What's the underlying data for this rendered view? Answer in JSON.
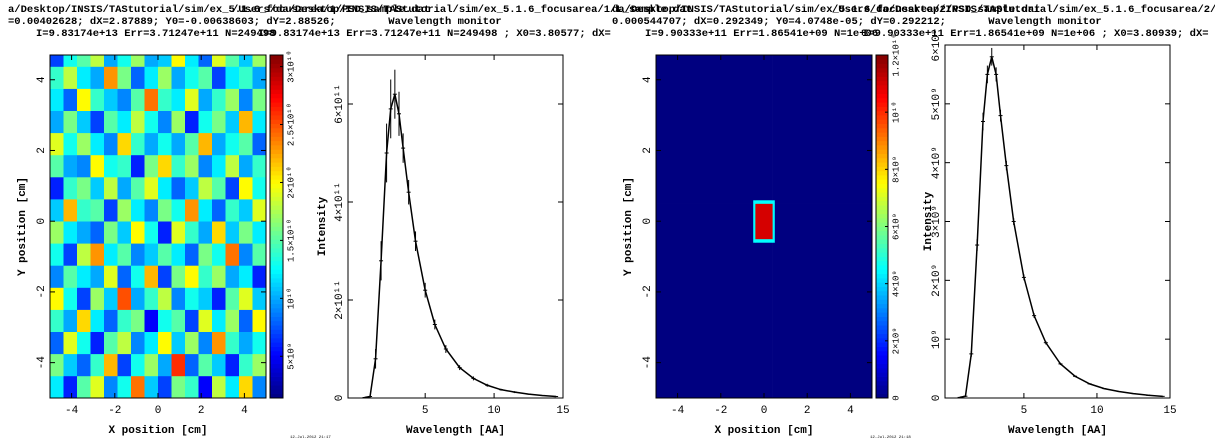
{
  "chart_data": [
    {
      "type": "heatmap",
      "title": [
        "a/Desktop/INSIS/TAStutorial/sim/ex_5.1.6_focusarea/1/PSD_sample.dat",
        "=0.00402628; dX=2.87889; Y0=-0.00638603; dY=2.88526;",
        "I=9.83174e+13 Err=3.71247e+11 N=249498"
      ],
      "xlabel": "X position [cm]",
      "ylabel": "Y position [cm]",
      "date": "12-Jul-2012 21:17",
      "xlim": [
        -5,
        5
      ],
      "ylim": [
        -5,
        4.7
      ],
      "xticks": [
        -4,
        -2,
        0,
        2,
        4
      ],
      "yticks": [
        -4,
        -2,
        0,
        2,
        4
      ],
      "colormap": "jet",
      "clim": [
        1400000000,
        31000000000
      ],
      "cticks": [
        {
          "value": 5000000000,
          "label": "5×10⁹"
        },
        {
          "value": 10000000000,
          "label": "10¹⁰"
        },
        {
          "value": 15000000000,
          "label": "1.5×10¹⁰"
        },
        {
          "value": 20000000000,
          "label": "2×10¹⁰"
        },
        {
          "value": 25000000000,
          "label": "2.5×10¹⁰"
        },
        {
          "value": 30000000000,
          "label": "3×10¹⁰"
        }
      ],
      "xbins": [
        -5,
        -4.375,
        -3.75,
        -3.125,
        -2.5,
        -1.875,
        -1.25,
        -0.625,
        0,
        0.625,
        1.25,
        1.875,
        2.5,
        3.125,
        3.75,
        4.375,
        5
      ],
      "ybins": [
        -5,
        -4.375,
        -3.75,
        -3.125,
        -2.5,
        -1.875,
        -1.25,
        -0.625,
        0,
        0.625,
        1.25,
        1.875,
        2.5,
        3.125,
        3.75,
        4.375,
        5
      ],
      "z": [
        [
          12000000000.0,
          6000000000.0,
          15000000000.0,
          19000000000.0,
          9000000000.0,
          13000000000.0,
          24000000000.0,
          11000000000.0,
          7000000000.0,
          16000000000.0,
          14000000000.0,
          5000000000.0,
          18000000000.0,
          12000000000.0,
          21000000000.0,
          9000000000.0
        ],
        [
          16000000000.0,
          11000000000.0,
          8000000000.0,
          14000000000.0,
          22000000000.0,
          7000000000.0,
          13000000000.0,
          17000000000.0,
          10000000000.0,
          26000000000.0,
          8000000000.0,
          15000000000.0,
          11000000000.0,
          6000000000.0,
          14000000000.0,
          17000000000.0
        ],
        [
          8000000000.0,
          19000000000.0,
          13000000000.0,
          6000000000.0,
          15000000000.0,
          18000000000.0,
          9000000000.0,
          12000000000.0,
          20000000000.0,
          11000000000.0,
          17000000000.0,
          9000000000.0,
          23000000000.0,
          14000000000.0,
          10000000000.0,
          13000000000.0
        ],
        [
          14000000000.0,
          10000000000.0,
          21000000000.0,
          12000000000.0,
          8000000000.0,
          14000000000.0,
          16000000000.0,
          5000000000.0,
          13000000000.0,
          15000000000.0,
          7000000000.0,
          19000000000.0,
          12000000000.0,
          17000000000.0,
          8000000000.0,
          20000000000.0
        ],
        [
          20000000000.0,
          13000000000.0,
          7000000000.0,
          17000000000.0,
          11000000000.0,
          25000000000.0,
          10000000000.0,
          14000000000.0,
          18000000000.0,
          9000000000.0,
          13000000000.0,
          11000000000.0,
          6000000000.0,
          15000000000.0,
          19000000000.0,
          11000000000.0
        ],
        [
          9000000000.0,
          15000000000.0,
          12000000000.0,
          10000000000.0,
          19000000000.0,
          8000000000.0,
          13000000000.0,
          22000000000.0,
          7000000000.0,
          16000000000.0,
          20000000000.0,
          14000000000.0,
          17000000000.0,
          10000000000.0,
          12000000000.0,
          6000000000.0
        ],
        [
          13000000000.0,
          7000000000.0,
          18000000000.0,
          23000000000.0,
          12000000000.0,
          15000000000.0,
          9000000000.0,
          11000000000.0,
          15000000000.0,
          12000000000.0,
          8000000000.0,
          16000000000.0,
          13000000000.0,
          24000000000.0,
          9000000000.0,
          15000000000.0
        ],
        [
          17000000000.0,
          12000000000.0,
          10000000000.0,
          8000000000.0,
          16000000000.0,
          11000000000.0,
          20000000000.0,
          13000000000.0,
          6000000000.0,
          19000000000.0,
          14000000000.0,
          10000000000.0,
          21000000000.0,
          11000000000.0,
          16000000000.0,
          12000000000.0
        ],
        [
          11000000000.0,
          22000000000.0,
          14000000000.0,
          15000000000.0,
          7000000000.0,
          17000000000.0,
          12000000000.0,
          9000000000.0,
          16000000000.0,
          13000000000.0,
          23000000000.0,
          12000000000.0,
          8000000000.0,
          14000000000.0,
          11000000000.0,
          19000000000.0
        ],
        [
          6000000000.0,
          14000000000.0,
          16000000000.0,
          11000000000.0,
          18000000000.0,
          10000000000.0,
          15000000000.0,
          19000000000.0,
          12000000000.0,
          8000000000.0,
          11000000000.0,
          18000000000.0,
          15000000000.0,
          7000000000.0,
          20000000000.0,
          13000000000.0
        ],
        [
          15000000000.0,
          10000000000.0,
          9000000000.0,
          20000000000.0,
          13000000000.0,
          14000000000.0,
          6000000000.0,
          16000000000.0,
          21000000000.0,
          14000000000.0,
          17000000000.0,
          9000000000.0,
          12000000000.0,
          18000000000.0,
          10000000000.0,
          14000000000.0
        ],
        [
          19000000000.0,
          13000000000.0,
          17000000000.0,
          12000000000.0,
          9000000000.0,
          21000000000.0,
          14000000000.0,
          10000000000.0,
          13000000000.0,
          10000000000.0,
          15000000000.0,
          22000000000.0,
          10000000000.0,
          13000000000.0,
          15000000000.0,
          8000000000.0
        ],
        [
          10000000000.0,
          16000000000.0,
          11000000000.0,
          7000000000.0,
          15000000000.0,
          12000000000.0,
          18000000000.0,
          13000000000.0,
          9000000000.0,
          17000000000.0,
          6000000000.0,
          13000000000.0,
          16000000000.0,
          11000000000.0,
          22000000000.0,
          12000000000.0
        ],
        [
          12000000000.0,
          8000000000.0,
          20000000000.0,
          14000000000.0,
          11000000000.0,
          9000000000.0,
          15000000000.0,
          24000000000.0,
          14000000000.0,
          12000000000.0,
          19000000000.0,
          10000000000.0,
          14000000000.0,
          17000000000.0,
          9000000000.0,
          16000000000.0
        ],
        [
          14000000000.0,
          18000000000.0,
          12000000000.0,
          10000000000.0,
          23000000000.0,
          16000000000.0,
          8000000000.0,
          12000000000.0,
          17000000000.0,
          10000000000.0,
          13000000000.0,
          15000000000.0,
          7000000000.0,
          12000000000.0,
          14000000000.0,
          10000000000.0
        ],
        [
          7000000000.0,
          13000000000.0,
          15000000000.0,
          18000000000.0,
          10000000000.0,
          13000000000.0,
          17000000000.0,
          10000000000.0,
          11000000000.0,
          20000000000.0,
          12000000000.0,
          8000000000.0,
          19000000000.0,
          15000000000.0,
          11000000000.0,
          17000000000.0
        ]
      ]
    },
    {
      "type": "line",
      "title": [
        "/Users/da/Desktop/INSIS/TAStutorial/sim/ex_5.1.6_focusarea/1/L_sample.dat",
        "Wavelength monitor",
        "I=9.83174e+13 Err=3.71247e+11 N=249498 ; X0=3.80577; dX="
      ],
      "xlabel": "Wavelength [AA]",
      "ylabel": "Intensity",
      "color": "#000000",
      "xlim": [
        -0.6,
        15
      ],
      "ylim": [
        0,
        700000000000
      ],
      "xticks": [
        5,
        10,
        15
      ],
      "yticks": [
        {
          "value": 0,
          "label": "0"
        },
        {
          "value": 200000000000,
          "label": "2×10¹¹"
        },
        {
          "value": 400000000000,
          "label": "4×10¹¹"
        },
        {
          "value": 600000000000,
          "label": "6×10¹¹"
        }
      ],
      "x": [
        0.6,
        1.0,
        1.4,
        1.8,
        2.2,
        2.5,
        2.8,
        3.1,
        3.4,
        3.8,
        4.3,
        5,
        5.7,
        6.5,
        7.5,
        8.5,
        9.5,
        10.5,
        11.5,
        12.5,
        13.5,
        14.5
      ],
      "values": [
        1000000000.0,
        3000000000.0,
        80000000000.0,
        280000000000.0,
        500000000000.0,
        590000000000.0,
        620000000000.0,
        580000000000.0,
        510000000000.0,
        420000000000.0,
        320000000000.0,
        220000000000.0,
        150000000000.0,
        100000000000.0,
        62000000000.0,
        40000000000.0,
        26000000000.0,
        17000000000.0,
        12000000000.0,
        8000000000.0,
        5000000000.0,
        3000000000.0
      ],
      "errors": [
        1000000000.0,
        2000000000.0,
        20000000000.0,
        40000000000.0,
        60000000000.0,
        60000000000.0,
        50000000000.0,
        45000000000.0,
        30000000000.0,
        25000000000.0,
        20000000000.0,
        15000000000.0,
        10000000000.0,
        8000000000.0,
        5000000000.0,
        4000000000.0,
        3000000000.0,
        2000000000.0,
        2000000000.0,
        1000000000.0,
        1000000000.0,
        1000000000.0
      ]
    },
    {
      "type": "heatmap",
      "title": [
        "da/Desktop/INSIS/TAStutorial/sim/ex_5.1.6_focusarea/2/PSD_sample.dat",
        "0.000544707; dX=0.292349; Y0=4.0748e-05; dY=0.292212;",
        "I=9.90333e+11 Err=1.86541e+09 N=1e+06"
      ],
      "xlabel": "X position [cm]",
      "ylabel": "Y position [cm]",
      "date": "12-Jul-2012 21:18",
      "xlim": [
        -5,
        5
      ],
      "ylim": [
        -5,
        4.7
      ],
      "xticks": [
        -4,
        -2,
        0,
        2,
        4
      ],
      "yticks": [
        -4,
        -2,
        0,
        2,
        4
      ],
      "colormap": "jet",
      "clim": [
        0,
        12000000000
      ],
      "cticks": [
        {
          "value": 0,
          "label": "0"
        },
        {
          "value": 2000000000,
          "label": "2×10⁹"
        },
        {
          "value": 4000000000,
          "label": "4×10⁹"
        },
        {
          "value": 6000000000,
          "label": "6×10⁹"
        },
        {
          "value": 8000000000,
          "label": "8×10⁹"
        },
        {
          "value": 10000000000,
          "label": "10¹⁰"
        },
        {
          "value": 12000000000,
          "label": "1.2×10¹⁰"
        }
      ],
      "xbins": [
        -5,
        -0.5,
        -0.4,
        0.4,
        0.5,
        5
      ],
      "ybins": [
        -5,
        -0.6,
        -0.5,
        0.5,
        0.6,
        5
      ],
      "z": [
        [
          0,
          0,
          0,
          0,
          0
        ],
        [
          0,
          4500000000.0,
          4500000000.0,
          4500000000.0,
          0
        ],
        [
          0,
          4500000000.0,
          11000000000.0,
          4500000000.0,
          0
        ],
        [
          0,
          4500000000.0,
          4500000000.0,
          4500000000.0,
          0
        ],
        [
          0,
          0,
          0,
          0,
          0
        ]
      ]
    },
    {
      "type": "line",
      "title": [
        "/Users/da/Desktop/INSIS/TAStutorial/sim/ex_5.1.6_focusarea/2/L_sample.dat",
        "Wavelength monitor",
        "I=9.90333e+11 Err=1.86541e+09 N=1e+06 ; X0=3.80939; dX="
      ],
      "xlabel": "Wavelength [AA]",
      "ylabel": "Intensity",
      "color": "#000000",
      "xlim": [
        -0.4,
        15
      ],
      "ylim": [
        0,
        6000000000
      ],
      "xticks": [
        5,
        10,
        15
      ],
      "yticks": [
        {
          "value": 0,
          "label": "0"
        },
        {
          "value": 1000000000,
          "label": "10⁹"
        },
        {
          "value": 2000000000,
          "label": "2×10⁹"
        },
        {
          "value": 3000000000,
          "label": "3×10⁹"
        },
        {
          "value": 4000000000,
          "label": "4×10⁹"
        },
        {
          "value": 5000000000,
          "label": "5×10⁹"
        },
        {
          "value": 6000000000,
          "label": "6×10⁹"
        }
      ],
      "x": [
        0.6,
        1.0,
        1.4,
        1.8,
        2.2,
        2.5,
        2.8,
        3.1,
        3.4,
        3.8,
        4.3,
        5,
        5.7,
        6.5,
        7.5,
        8.5,
        9.5,
        10.5,
        11.5,
        12.5,
        13.5,
        14.5
      ],
      "values": [
        10000000.0,
        30000000.0,
        750000000.0,
        2600000000.0,
        4700000000.0,
        5500000000.0,
        5800000000.0,
        5500000000.0,
        4800000000.0,
        3950000000.0,
        3000000000.0,
        2050000000.0,
        1400000000.0,
        940000000.0,
        580000000.0,
        370000000.0,
        240000000.0,
        160000000.0,
        110000000.0,
        75000000.0,
        47000000.0,
        28000000.0
      ],
      "errors": [
        5000000.0,
        10000000.0,
        50000000.0,
        100000000.0,
        150000000.0,
        150000000.0,
        150000000.0,
        120000000.0,
        100000000.0,
        80000000.0,
        60000000.0,
        50000000.0,
        40000000.0,
        30000000.0,
        20000000.0,
        15000000.0,
        10000000.0,
        10000000.0,
        8000000.0,
        6000000.0,
        5000000.0,
        4000000.0
      ]
    }
  ]
}
